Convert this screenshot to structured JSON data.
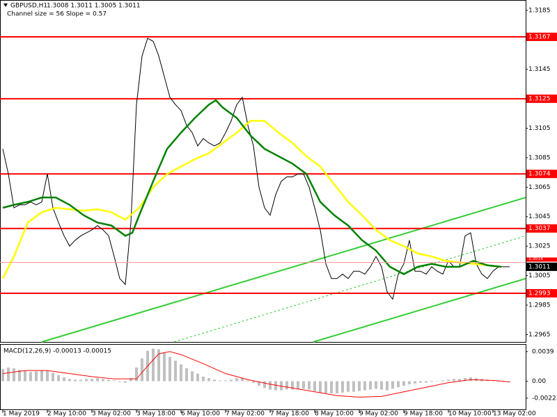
{
  "chart_data": [
    {
      "type": "line",
      "title": "GBPUSD,H1",
      "ohlc_text": "1.3008 1.3011 1.3005 1.3011",
      "subtitle": "Channel size = 56 Slope = 0.57",
      "xlim": [
        -1,
        187.75
      ],
      "ylim": [
        1.296,
        1.3192
      ],
      "yticks": [
        1.3185,
        1.3145,
        1.3105,
        1.3085,
        1.3065,
        1.3045,
        1.3025,
        1.3005,
        1.2985,
        1.2965
      ],
      "series": [
        {
          "color": "#000000",
          "x": [
            0,
            2,
            4,
            6,
            8,
            10,
            12,
            14,
            16,
            18,
            20,
            22,
            24,
            26,
            28,
            30,
            32,
            34,
            36,
            38,
            40,
            42,
            44,
            46,
            48,
            50,
            52,
            54,
            56,
            58,
            60,
            62,
            64,
            66,
            68,
            70,
            72,
            74,
            76,
            78,
            80,
            82,
            84,
            86,
            88,
            90,
            92,
            94,
            96,
            98,
            100,
            102,
            104,
            106,
            108,
            110,
            112,
            114,
            116,
            118,
            120,
            122,
            124,
            126,
            128,
            130,
            132,
            134,
            136,
            138,
            140,
            142,
            144,
            146,
            148,
            150,
            152,
            154,
            156,
            158,
            160,
            162,
            164,
            166,
            168,
            170,
            172,
            174,
            176,
            178,
            180,
            182
          ],
          "values": [
            1.3091,
            1.3074,
            1.3051,
            1.3053,
            1.3053,
            1.3055,
            1.3053,
            1.3055,
            1.3074,
            1.3051,
            1.3041,
            1.3032,
            1.3025,
            1.3029,
            1.3032,
            1.3034,
            1.3036,
            1.3039,
            1.3036,
            1.3032,
            1.3018,
            1.3003,
            1.2999,
            1.3041,
            1.3121,
            1.3154,
            1.3166,
            1.3164,
            1.3154,
            1.314,
            1.3126,
            1.3121,
            1.3117,
            1.3107,
            1.3102,
            1.3093,
            1.3098,
            1.3095,
            1.3093,
            1.3095,
            1.3102,
            1.311,
            1.3121,
            1.3126,
            1.3107,
            1.3093,
            1.3065,
            1.3051,
            1.3046,
            1.306,
            1.3069,
            1.3072,
            1.3072,
            1.3074,
            1.3074,
            1.3065,
            1.3051,
            1.3036,
            1.3013,
            1.3003,
            1.3003,
            1.3006,
            1.3003,
            1.3008,
            1.3008,
            1.3006,
            1.3011,
            1.3018,
            1.3011,
            1.2994,
            1.2989,
            1.3006,
            1.3013,
            1.3029,
            1.3008,
            1.3008,
            1.3006,
            1.3011,
            1.3008,
            1.3006,
            1.3015,
            1.3011,
            1.3011,
            1.3032,
            1.3034,
            1.3013,
            1.3006,
            1.3003,
            1.3008,
            1.3011,
            1.3011,
            1.3011
          ]
        },
        {
          "color": "#ffff00",
          "x": [
            0,
            4,
            9,
            14,
            19,
            24,
            29,
            34,
            39,
            44,
            49,
            54,
            59,
            64,
            69,
            74,
            79,
            84,
            89,
            94,
            99,
            104,
            109,
            114,
            119,
            124,
            129,
            134,
            139,
            144,
            149,
            154,
            159,
            164,
            169,
            174,
            179
          ],
          "values": [
            1.3003,
            1.3018,
            1.3041,
            1.3048,
            1.3051,
            1.305,
            1.3049,
            1.305,
            1.3048,
            1.3043,
            1.3051,
            1.3065,
            1.3074,
            1.3079,
            1.3084,
            1.3088,
            1.3095,
            1.3102,
            1.311,
            1.311,
            1.3102,
            1.3095,
            1.3086,
            1.3079,
            1.3067,
            1.3055,
            1.3046,
            1.3036,
            1.3029,
            1.3025,
            1.302,
            1.3018,
            1.3015,
            1.3014,
            1.3013,
            1.3012,
            1.3011
          ]
        },
        {
          "color": "#008000",
          "x": [
            0,
            4,
            9,
            14,
            19,
            24,
            29,
            34,
            39,
            44,
            46.5,
            49,
            54,
            59,
            64,
            69,
            74,
            76.5,
            79,
            84,
            89,
            94,
            99,
            104,
            109,
            114,
            119,
            124,
            129,
            134,
            139,
            144,
            149,
            154,
            159,
            164,
            169,
            174,
            179
          ],
          "values": [
            1.3051,
            1.3053,
            1.3055,
            1.3058,
            1.3058,
            1.3053,
            1.3046,
            1.3041,
            1.3039,
            1.3032,
            1.3034,
            1.3046,
            1.3069,
            1.3091,
            1.3102,
            1.3112,
            1.3121,
            1.3124,
            1.3119,
            1.3112,
            1.31,
            1.3091,
            1.3086,
            1.3081,
            1.3074,
            1.3055,
            1.3046,
            1.3039,
            1.3029,
            1.3022,
            1.3011,
            1.3006,
            1.3011,
            1.3013,
            1.3011,
            1.3011,
            1.3015,
            1.3012,
            1.3011
          ]
        }
      ],
      "trendlines": [
        {
          "color": "#32cd32",
          "x": [
            14,
            187.75
          ],
          "values": [
            1.296,
            1.3058
          ],
          "dashed": false
        },
        {
          "color": "#32cd32",
          "x": [
            111.5,
            187.75
          ],
          "values": [
            1.296,
            1.3003
          ],
          "dashed": false
        },
        {
          "color": "#32cd32",
          "x": [
            61.5,
            187.75
          ],
          "values": [
            1.296,
            1.3032
          ],
          "dashed": true
        }
      ],
      "levels": [
        1.3167,
        1.3125,
        1.3074,
        1.3037,
        1.2993
      ],
      "level_color": "#ff0000",
      "ask_price": 1.3014,
      "last_price": 1.3011
    },
    {
      "type": "bar",
      "title": "MACD(12,26,9) -0.00013 -0.00015",
      "color": "#c0c0c0",
      "xlim": [
        -1,
        187.75
      ],
      "ylim": [
        -0.0038,
        0.0048
      ],
      "yticks": [
        0.0039,
        {
          "value": 0,
          "label": "0.00"
        },
        -0.00223
      ],
      "xticks": [
        {
          "value": 0,
          "label": "1 May 2019"
        },
        {
          "value": 16,
          "label": "2 May 10:00"
        },
        {
          "value": 32,
          "label": "3 May 02:00"
        },
        {
          "value": 48,
          "label": "3 May 18:00"
        },
        {
          "value": 64,
          "label": "6 May 10:00"
        },
        {
          "value": 80,
          "label": "7 May 02:00"
        },
        {
          "value": 96,
          "label": "7 May 18:00"
        },
        {
          "value": 112,
          "label": "8 May 10:00"
        },
        {
          "value": 128,
          "label": "9 May 02:00"
        },
        {
          "value": 144,
          "label": "9 May 18:00"
        },
        {
          "value": 160,
          "label": "10 May 10:00"
        },
        {
          "value": 176,
          "label": "13 May 02:00"
        }
      ],
      "x": [
        0,
        2,
        4,
        6,
        8,
        10,
        12,
        14,
        16,
        18,
        20,
        22,
        24,
        26,
        28,
        30,
        32,
        34,
        36,
        38,
        40,
        42,
        44,
        46,
        48,
        50,
        52,
        54,
        56,
        58,
        60,
        62,
        64,
        66,
        68,
        70,
        72,
        74,
        76,
        78,
        80,
        82,
        84,
        86,
        88,
        90,
        92,
        94,
        96,
        98,
        100,
        102,
        104,
        106,
        108,
        110,
        112,
        114,
        116,
        118,
        120,
        122,
        124,
        126,
        128,
        130,
        132,
        134,
        136,
        138,
        140,
        142,
        144,
        146,
        148,
        150,
        152,
        154,
        156,
        158,
        160,
        162,
        164,
        166,
        168,
        170,
        172,
        174,
        176,
        178,
        180,
        182
      ],
      "values": [
        0.0016,
        0.0018,
        0.0017,
        0.0015,
        0.0014,
        0.0012,
        0.0013,
        0.0014,
        0.0014,
        0.0011,
        0.0008,
        0.0005,
        0.0003,
        0.0002,
        0.0002,
        0.0003,
        0.0003,
        0.0004,
        0.0003,
        0.0002,
        0.0001,
        -0.0001,
        -0.0002,
        0.0004,
        0.0018,
        0.003,
        0.004,
        0.0043,
        0.0042,
        0.0038,
        0.0032,
        0.0027,
        0.0022,
        0.0017,
        0.0013,
        0.001,
        0.0006,
        0.0004,
        0.0002,
        0.0001,
        0.0001,
        0.0002,
        0.0004,
        0.0004,
        0.0001,
        -0.0002,
        -0.0006,
        -0.0009,
        -0.0011,
        -0.0012,
        -0.0012,
        -0.0011,
        -0.0011,
        -0.001,
        -0.001,
        -0.0011,
        -0.0013,
        -0.0015,
        -0.0016,
        -0.0016,
        -0.0016,
        -0.0015,
        -0.0014,
        -0.0014,
        -0.0013,
        -0.0012,
        -0.0011,
        -0.001,
        -0.0011,
        -0.0012,
        -0.001,
        -0.0008,
        -0.0006,
        -0.0004,
        -0.0003,
        -0.0002,
        -0.0002,
        -0.0001,
        0.0,
        0.0001,
        0.0002,
        0.0003,
        0.0003,
        0.0004,
        0.0005,
        0.0004,
        0.0003,
        0.0002,
        0.0001,
        0.0,
        -0.0001,
        -0.0001
      ],
      "signal": {
        "color": "#ff0000",
        "x": [
          0,
          8,
          16,
          24,
          32,
          40,
          48,
          52,
          56,
          60,
          64,
          72,
          80,
          88,
          96,
          104,
          112,
          120,
          128,
          136,
          144,
          152,
          160,
          168,
          176,
          182
        ],
        "values": [
          0.001,
          0.0014,
          0.0014,
          0.001,
          0.0006,
          0.0003,
          0.0003,
          0.002,
          0.0036,
          0.0039,
          0.0035,
          0.0023,
          0.001,
          0.0002,
          -0.0004,
          -0.0009,
          -0.0014,
          -0.0019,
          -0.0021,
          -0.002,
          -0.0014,
          -0.0008,
          -0.0002,
          0.0002,
          0.0001,
          -0.0001
        ]
      }
    }
  ]
}
